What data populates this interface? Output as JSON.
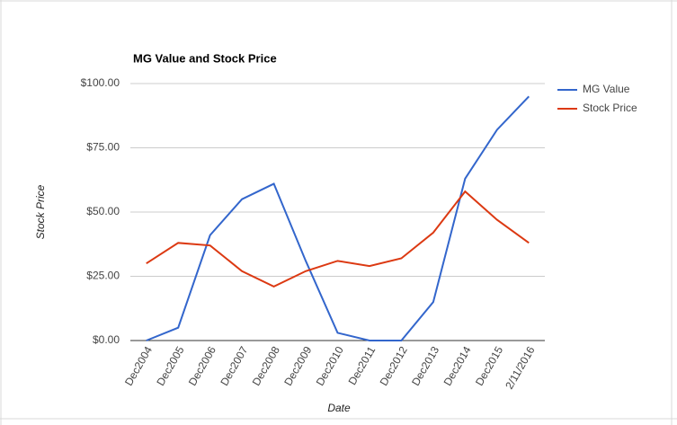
{
  "chart_data": {
    "type": "line",
    "title": "MG Value and Stock Price",
    "x_label": "Date",
    "y_label": "Stock Price",
    "categories": [
      "Dec2004",
      "Dec2005",
      "Dec2006",
      "Dec2007",
      "Dec2008",
      "Dec2009",
      "Dec2010",
      "Dec2011",
      "Dec2012",
      "Dec2013",
      "Dec2014",
      "Dec2015",
      "2/11/2016"
    ],
    "series": [
      {
        "name": "MG Value",
        "color": "#3366cc",
        "values": [
          0,
          5,
          41,
          55,
          61,
          31,
          3,
          0,
          0,
          15,
          63,
          82,
          95
        ]
      },
      {
        "name": "Stock Price",
        "color": "#dc3912",
        "values": [
          30,
          38,
          37,
          27,
          21,
          27,
          31,
          29,
          32,
          42,
          58,
          47,
          38
        ]
      }
    ],
    "ylim": [
      0,
      100
    ],
    "yticks": [
      {
        "value": 0,
        "label": "$0.00"
      },
      {
        "value": 25,
        "label": "$25.00"
      },
      {
        "value": 50,
        "label": "$50.00"
      },
      {
        "value": 75,
        "label": "$75.00"
      },
      {
        "value": 100,
        "label": "$100.00"
      }
    ],
    "grid": true,
    "legend": "right"
  }
}
